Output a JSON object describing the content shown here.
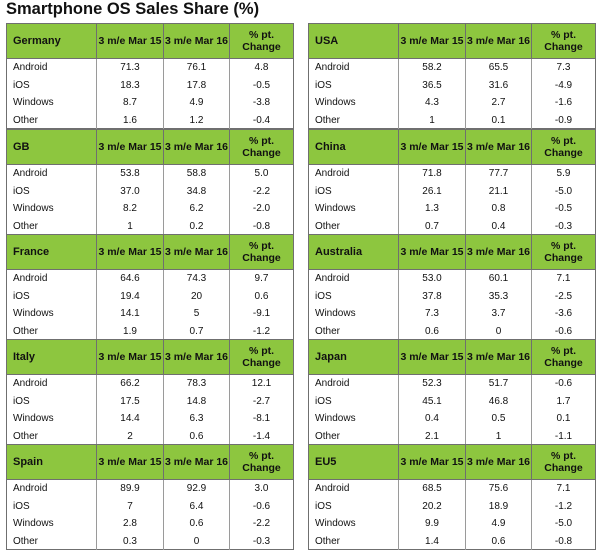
{
  "title": "Smartphone OS Sales Share (%)",
  "chart_data": {
    "type": "table",
    "title": "Smartphone OS Sales Share (%)",
    "columns": [
      "3 m/e Mar 15",
      "3 m/e Mar 16",
      "% pt. Change"
    ],
    "tables": [
      {
        "region": "Germany",
        "rows": [
          {
            "os": "Android",
            "v15": "71.3",
            "v16": "76.1",
            "change": "4.8"
          },
          {
            "os": "iOS",
            "v15": "18.3",
            "v16": "17.8",
            "change": "-0.5"
          },
          {
            "os": "Windows",
            "v15": "8.7",
            "v16": "4.9",
            "change": "-3.8"
          },
          {
            "os": "Other",
            "v15": "1.6",
            "v16": "1.2",
            "change": "-0.4"
          }
        ]
      },
      {
        "region": "GB",
        "rows": [
          {
            "os": "Android",
            "v15": "53.8",
            "v16": "58.8",
            "change": "5.0"
          },
          {
            "os": "iOS",
            "v15": "37.0",
            "v16": "34.8",
            "change": "-2.2"
          },
          {
            "os": "Windows",
            "v15": "8.2",
            "v16": "6.2",
            "change": "-2.0"
          },
          {
            "os": "Other",
            "v15": "1",
            "v16": "0.2",
            "change": "-0.8"
          }
        ]
      },
      {
        "region": "France",
        "rows": [
          {
            "os": "Android",
            "v15": "64.6",
            "v16": "74.3",
            "change": "9.7"
          },
          {
            "os": "iOS",
            "v15": "19.4",
            "v16": "20",
            "change": "0.6"
          },
          {
            "os": "Windows",
            "v15": "14.1",
            "v16": "5",
            "change": "-9.1"
          },
          {
            "os": "Other",
            "v15": "1.9",
            "v16": "0.7",
            "change": "-1.2"
          }
        ]
      },
      {
        "region": "Italy",
        "rows": [
          {
            "os": "Android",
            "v15": "66.2",
            "v16": "78.3",
            "change": "12.1"
          },
          {
            "os": "iOS",
            "v15": "17.5",
            "v16": "14.8",
            "change": "-2.7"
          },
          {
            "os": "Windows",
            "v15": "14.4",
            "v16": "6.3",
            "change": "-8.1"
          },
          {
            "os": "Other",
            "v15": "2",
            "v16": "0.6",
            "change": "-1.4"
          }
        ]
      },
      {
        "region": "Spain",
        "rows": [
          {
            "os": "Android",
            "v15": "89.9",
            "v16": "92.9",
            "change": "3.0"
          },
          {
            "os": "iOS",
            "v15": "7",
            "v16": "6.4",
            "change": "-0.6"
          },
          {
            "os": "Windows",
            "v15": "2.8",
            "v16": "0.6",
            "change": "-2.2"
          },
          {
            "os": "Other",
            "v15": "0.3",
            "v16": "0",
            "change": "-0.3"
          }
        ]
      },
      {
        "region": "USA",
        "rows": [
          {
            "os": "Android",
            "v15": "58.2",
            "v16": "65.5",
            "change": "7.3"
          },
          {
            "os": "iOS",
            "v15": "36.5",
            "v16": "31.6",
            "change": "-4.9"
          },
          {
            "os": "Windows",
            "v15": "4.3",
            "v16": "2.7",
            "change": "-1.6"
          },
          {
            "os": "Other",
            "v15": "1",
            "v16": "0.1",
            "change": "-0.9"
          }
        ]
      },
      {
        "region": "China",
        "rows": [
          {
            "os": "Android",
            "v15": "71.8",
            "v16": "77.7",
            "change": "5.9"
          },
          {
            "os": "iOS",
            "v15": "26.1",
            "v16": "21.1",
            "change": "-5.0"
          },
          {
            "os": "Windows",
            "v15": "1.3",
            "v16": "0.8",
            "change": "-0.5"
          },
          {
            "os": "Other",
            "v15": "0.7",
            "v16": "0.4",
            "change": "-0.3"
          }
        ]
      },
      {
        "region": "Australia",
        "rows": [
          {
            "os": "Android",
            "v15": "53.0",
            "v16": "60.1",
            "change": "7.1"
          },
          {
            "os": "iOS",
            "v15": "37.8",
            "v16": "35.3",
            "change": "-2.5"
          },
          {
            "os": "Windows",
            "v15": "7.3",
            "v16": "3.7",
            "change": "-3.6"
          },
          {
            "os": "Other",
            "v15": "0.6",
            "v16": "0",
            "change": "-0.6"
          }
        ]
      },
      {
        "region": "Japan",
        "rows": [
          {
            "os": "Android",
            "v15": "52.3",
            "v16": "51.7",
            "change": "-0.6"
          },
          {
            "os": "iOS",
            "v15": "45.1",
            "v16": "46.8",
            "change": "1.7"
          },
          {
            "os": "Windows",
            "v15": "0.4",
            "v16": "0.5",
            "change": "0.1"
          },
          {
            "os": "Other",
            "v15": "2.1",
            "v16": "1",
            "change": "-1.1"
          }
        ]
      },
      {
        "region": "EU5",
        "rows": [
          {
            "os": "Android",
            "v15": "68.5",
            "v16": "75.6",
            "change": "7.1"
          },
          {
            "os": "iOS",
            "v15": "20.2",
            "v16": "18.9",
            "change": "-1.2"
          },
          {
            "os": "Windows",
            "v15": "9.9",
            "v16": "4.9",
            "change": "-5.0"
          },
          {
            "os": "Other",
            "v15": "1.4",
            "v16": "0.6",
            "change": "-0.8"
          }
        ]
      }
    ]
  },
  "colors": {
    "header_bg": "#8dc63f",
    "border": "#6f6f6f"
  }
}
